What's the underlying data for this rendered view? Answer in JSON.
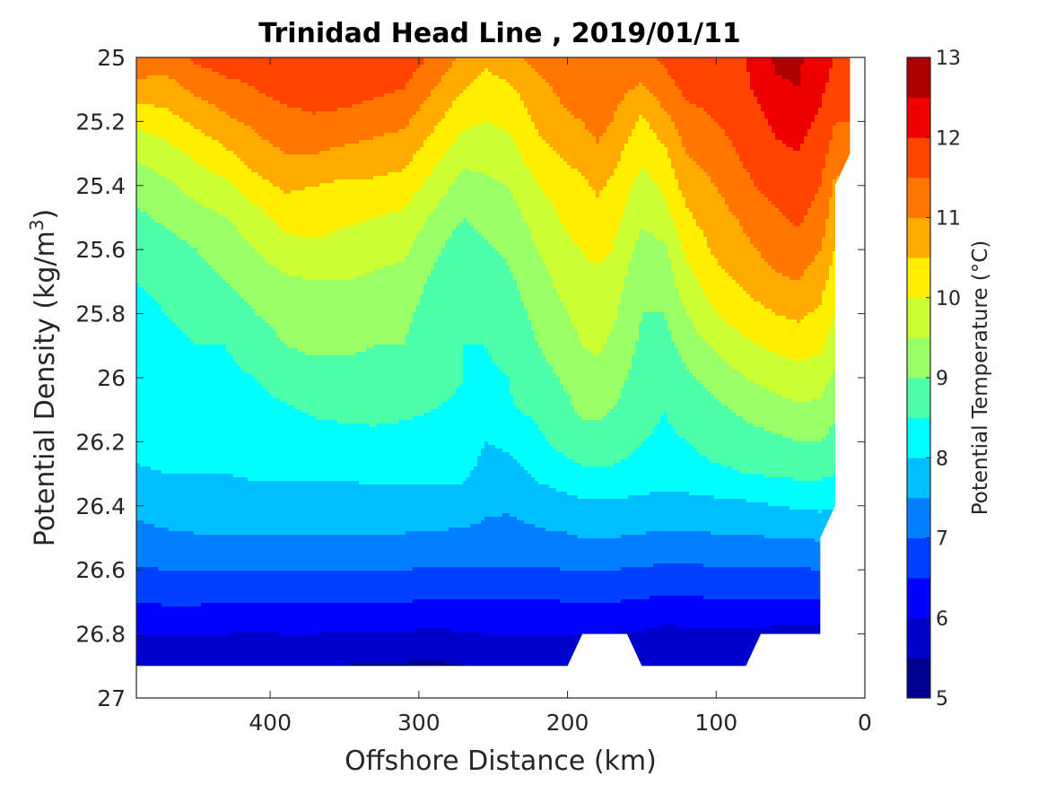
{
  "chart_data": {
    "type": "contourf",
    "title": "Trinidad Head Line , 2019/01/11",
    "xlabel": "Offshore Distance (km)",
    "ylabel_main": "Potential Density (kg/m",
    "ylabel_sup": "3",
    "ylabel_close": ")",
    "colorbar_label": "Potential Temperature (°C)",
    "x_reversed": true,
    "y_reversed": true,
    "xlim": [
      490,
      0
    ],
    "ylim": [
      25,
      27
    ],
    "xticks": [
      400,
      300,
      200,
      100,
      0
    ],
    "xtick_labels": [
      "400",
      "300",
      "200",
      "100",
      "0"
    ],
    "yticks": [
      25,
      25.2,
      25.4,
      25.6,
      25.8,
      26,
      26.2,
      26.4,
      26.6,
      26.8,
      27
    ],
    "ytick_labels": [
      "25",
      "25.2",
      "25.4",
      "25.6",
      "25.8",
      "26",
      "26.2",
      "26.4",
      "26.6",
      "26.8",
      "27"
    ],
    "colorbar_ticks": [
      5,
      6,
      7,
      8,
      9,
      10,
      11,
      12,
      13
    ],
    "colorbar_tick_labels": [
      "5",
      "6",
      "7",
      "8",
      "9",
      "10",
      "11",
      "12",
      "13"
    ],
    "levels": [
      5,
      5.5,
      6,
      6.5,
      7,
      7.5,
      8,
      8.5,
      9,
      9.5,
      10,
      10.5,
      11,
      11.5,
      12,
      12.5,
      13
    ],
    "colors": [
      "#00008f",
      "#0000cc",
      "#0000ff",
      "#0040ff",
      "#0080ff",
      "#00bfff",
      "#00ffff",
      "#4dffa8",
      "#99ff66",
      "#ccff33",
      "#ffee00",
      "#ffaa00",
      "#ff7700",
      "#ff4400",
      "#ee0000",
      "#aa0000"
    ],
    "x_grid": [
      490,
      470,
      450,
      430,
      410,
      390,
      370,
      350,
      330,
      310,
      290,
      270,
      255,
      240,
      220,
      200,
      190,
      180,
      170,
      150,
      135,
      120,
      100,
      80,
      60,
      45,
      30,
      20
    ],
    "y_grid": [
      25.0,
      25.1,
      25.2,
      25.3,
      25.4,
      25.5,
      25.6,
      25.7,
      25.8,
      25.9,
      26.0,
      26.1,
      26.2,
      26.3,
      26.4,
      26.5,
      26.6,
      26.7,
      26.8,
      26.9
    ],
    "temperature": [
      [
        11.4,
        11.2,
        11.6,
        11.8,
        11.8,
        11.8,
        12.0,
        12.0,
        11.8,
        11.8,
        11.4,
        10.9,
        10.6,
        10.8,
        11.2,
        11.4,
        11.4,
        11.4,
        11.4,
        11.4,
        11.6,
        11.8,
        11.8,
        12.0,
        12.6,
        12.6,
        12.2,
        12.0
      ],
      [
        10.8,
        10.8,
        11.1,
        11.3,
        11.5,
        11.7,
        11.8,
        11.8,
        11.6,
        11.5,
        11.0,
        10.5,
        10.3,
        10.4,
        10.8,
        11.2,
        11.3,
        11.4,
        11.2,
        10.9,
        11.3,
        11.6,
        11.7,
        11.9,
        12.4,
        12.5,
        12.1,
        11.8
      ],
      [
        10.1,
        10.3,
        10.6,
        10.9,
        11.1,
        11.3,
        11.4,
        11.3,
        11.2,
        11.1,
        10.6,
        10.1,
        10.0,
        10.1,
        10.6,
        10.9,
        11.0,
        11.2,
        11.0,
        10.4,
        10.8,
        11.3,
        11.5,
        11.7,
        12.1,
        12.2,
        11.9,
        11.5
      ],
      [
        9.6,
        9.8,
        10.1,
        10.4,
        10.8,
        11.0,
        11.0,
        10.9,
        10.8,
        10.7,
        10.2,
        9.7,
        9.7,
        9.8,
        10.3,
        10.6,
        10.7,
        10.9,
        10.7,
        10.1,
        10.4,
        11.0,
        11.3,
        11.6,
        11.9,
        12.0,
        11.7,
        11.3
      ],
      [
        9.2,
        9.4,
        9.7,
        9.9,
        10.3,
        10.6,
        10.5,
        10.4,
        10.4,
        10.3,
        9.8,
        9.3,
        9.4,
        9.5,
        10.0,
        10.3,
        10.4,
        10.6,
        10.4,
        9.8,
        10.1,
        10.7,
        11.0,
        11.4,
        11.7,
        11.8,
        11.5,
        10.9
      ],
      [
        8.9,
        9.1,
        9.3,
        9.5,
        9.8,
        10.2,
        10.2,
        10.1,
        10.0,
        9.9,
        9.4,
        9.0,
        9.2,
        9.3,
        9.7,
        10.1,
        10.2,
        10.3,
        10.2,
        9.6,
        9.8,
        10.4,
        10.8,
        11.1,
        11.4,
        11.6,
        11.3,
        10.7
      ],
      [
        8.6,
        8.8,
        9.0,
        9.2,
        9.5,
        9.8,
        9.9,
        9.8,
        9.7,
        9.6,
        9.1,
        8.7,
        8.9,
        9.1,
        9.5,
        9.9,
        10.0,
        10.1,
        10.0,
        9.3,
        9.4,
        10.1,
        10.6,
        10.9,
        11.2,
        11.3,
        11.0,
        10.5
      ],
      [
        8.5,
        8.6,
        8.8,
        9.0,
        9.2,
        9.4,
        9.5,
        9.5,
        9.4,
        9.3,
        8.9,
        8.6,
        8.7,
        8.9,
        9.3,
        9.7,
        9.9,
        9.9,
        9.8,
        9.1,
        9.2,
        9.8,
        10.3,
        10.6,
        10.9,
        11.0,
        10.7,
        10.2
      ],
      [
        8.4,
        8.5,
        8.6,
        8.7,
        9.0,
        9.2,
        9.3,
        9.3,
        9.2,
        9.1,
        8.8,
        8.6,
        8.6,
        8.8,
        9.1,
        9.5,
        9.7,
        9.7,
        9.6,
        9.0,
        9.0,
        9.5,
        10.0,
        10.3,
        10.5,
        10.6,
        10.4,
        10.0
      ],
      [
        8.3,
        8.4,
        8.5,
        8.5,
        8.7,
        9.0,
        9.1,
        9.1,
        9.0,
        9.0,
        8.7,
        8.5,
        8.5,
        8.7,
        9.0,
        9.3,
        9.5,
        9.6,
        9.4,
        8.9,
        8.8,
        9.2,
        9.6,
        9.9,
        10.1,
        10.2,
        10.1,
        9.7
      ],
      [
        8.2,
        8.3,
        8.4,
        8.4,
        8.5,
        8.7,
        8.8,
        8.8,
        8.8,
        8.7,
        8.6,
        8.5,
        8.4,
        8.5,
        8.8,
        9.1,
        9.3,
        9.3,
        9.2,
        8.8,
        8.6,
        8.9,
        9.2,
        9.5,
        9.7,
        9.8,
        9.7,
        9.4
      ],
      [
        8.15,
        8.2,
        8.25,
        8.3,
        8.35,
        8.45,
        8.55,
        8.6,
        8.6,
        8.55,
        8.5,
        8.45,
        8.35,
        8.45,
        8.6,
        8.9,
        9.1,
        9.1,
        9.0,
        8.7,
        8.5,
        8.7,
        8.9,
        9.1,
        9.3,
        9.4,
        9.4,
        9.1
      ],
      [
        8.1,
        8.15,
        8.2,
        8.2,
        8.25,
        8.3,
        8.35,
        8.35,
        8.4,
        8.4,
        8.4,
        8.35,
        8.0,
        8.1,
        8.4,
        8.7,
        8.8,
        8.8,
        8.8,
        8.5,
        8.4,
        8.5,
        8.7,
        8.8,
        8.9,
        9.0,
        9.0,
        8.8
      ],
      [
        7.95,
        8.0,
        8.0,
        8.0,
        8.05,
        8.05,
        8.05,
        8.05,
        8.1,
        8.1,
        8.1,
        8.1,
        7.8,
        7.8,
        8.1,
        8.3,
        8.4,
        8.4,
        8.4,
        8.3,
        8.2,
        8.3,
        8.4,
        8.5,
        8.55,
        8.6,
        8.6,
        8.5
      ],
      [
        7.6,
        7.75,
        7.8,
        7.8,
        7.8,
        7.8,
        7.8,
        7.8,
        7.8,
        7.8,
        7.8,
        7.75,
        7.6,
        7.55,
        7.7,
        7.8,
        7.9,
        7.9,
        7.9,
        7.85,
        7.8,
        7.8,
        7.85,
        7.9,
        8.0,
        8.05,
        8.1,
        8.05
      ],
      [
        7.35,
        7.4,
        7.45,
        7.45,
        7.45,
        7.45,
        7.45,
        7.45,
        7.45,
        7.45,
        7.4,
        7.4,
        7.35,
        7.35,
        7.4,
        7.45,
        7.5,
        7.5,
        7.5,
        7.45,
        7.4,
        7.4,
        7.45,
        7.45,
        7.5,
        7.5,
        7.55,
        7.55
      ],
      [
        6.95,
        7.0,
        7.0,
        7.0,
        7.0,
        7.0,
        7.0,
        7.0,
        7.0,
        7.0,
        6.95,
        6.95,
        6.95,
        6.95,
        6.95,
        7.0,
        7.0,
        7.0,
        7.0,
        6.95,
        6.9,
        6.9,
        6.95,
        6.95,
        6.95,
        6.95,
        7.0,
        7.0
      ],
      [
        6.5,
        6.55,
        6.55,
        6.5,
        6.5,
        6.5,
        6.5,
        6.5,
        6.5,
        6.5,
        6.45,
        6.45,
        6.45,
        6.45,
        6.45,
        6.5,
        6.5,
        6.5,
        6.5,
        6.45,
        6.4,
        6.4,
        6.45,
        6.45,
        6.45,
        6.45,
        6.45,
        6.45
      ],
      [
        6.0,
        6.05,
        6.05,
        6.0,
        5.95,
        6.0,
        6.0,
        5.95,
        5.95,
        5.95,
        5.9,
        5.95,
        6.0,
        6.0,
        6.0,
        6.0,
        6.0,
        6.0,
        6.0,
        5.95,
        5.85,
        5.9,
        5.9,
        5.9,
        5.85,
        5.85,
        5.85,
        5.85
      ],
      [
        5.55,
        5.5,
        5.5,
        5.5,
        5.55,
        5.55,
        5.55,
        5.5,
        5.45,
        5.45,
        5.4,
        5.5,
        5.55,
        5.55,
        5.55,
        5.55,
        5.55,
        5.55,
        5.55,
        5.55,
        5.5,
        5.5,
        5.5,
        5.5,
        5.5,
        5.5,
        5.5,
        5.5
      ]
    ],
    "data_boundary": [
      [
        490,
        26.9
      ],
      [
        200,
        26.9
      ],
      [
        190,
        26.8
      ],
      [
        160,
        26.8
      ],
      [
        150,
        26.9
      ],
      [
        80,
        26.9
      ],
      [
        70,
        26.8
      ],
      [
        30,
        26.8
      ],
      [
        30,
        26.5
      ],
      [
        20,
        26.4
      ],
      [
        20,
        25.4
      ],
      [
        10,
        25.3
      ],
      [
        10,
        25.0
      ],
      [
        490,
        25.0
      ]
    ]
  }
}
